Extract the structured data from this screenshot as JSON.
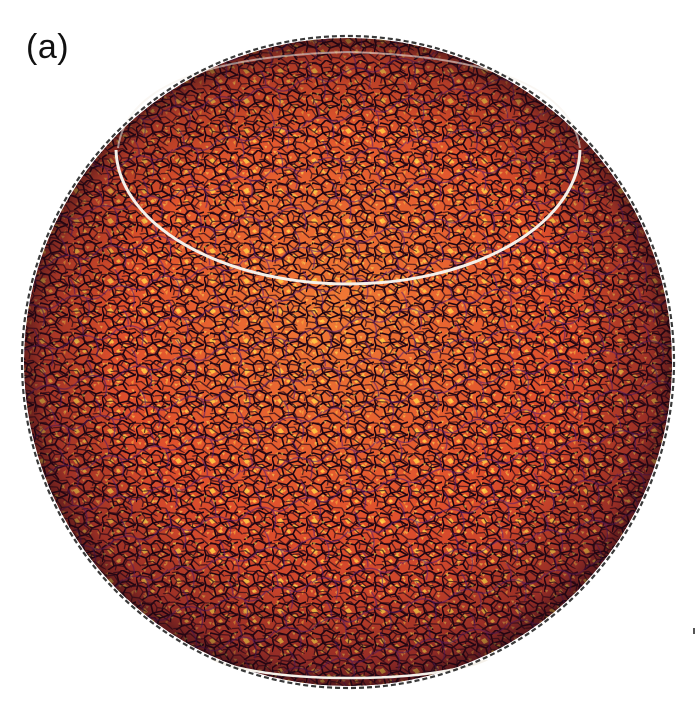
{
  "figure": {
    "panel_label": "(a)",
    "subject": "sphere-texture-cellular",
    "colors": {
      "background": "#ffffff",
      "cell_base": "#e5562d",
      "cell_highlight": "#f6b23a",
      "cell_bright": "#ffe15a",
      "boundary_dark": "#1e0612",
      "boundary_purple": "#5a1c6b",
      "outline_dashed": "#3a3a3a",
      "ring_white": "#f5f1ea"
    }
  }
}
